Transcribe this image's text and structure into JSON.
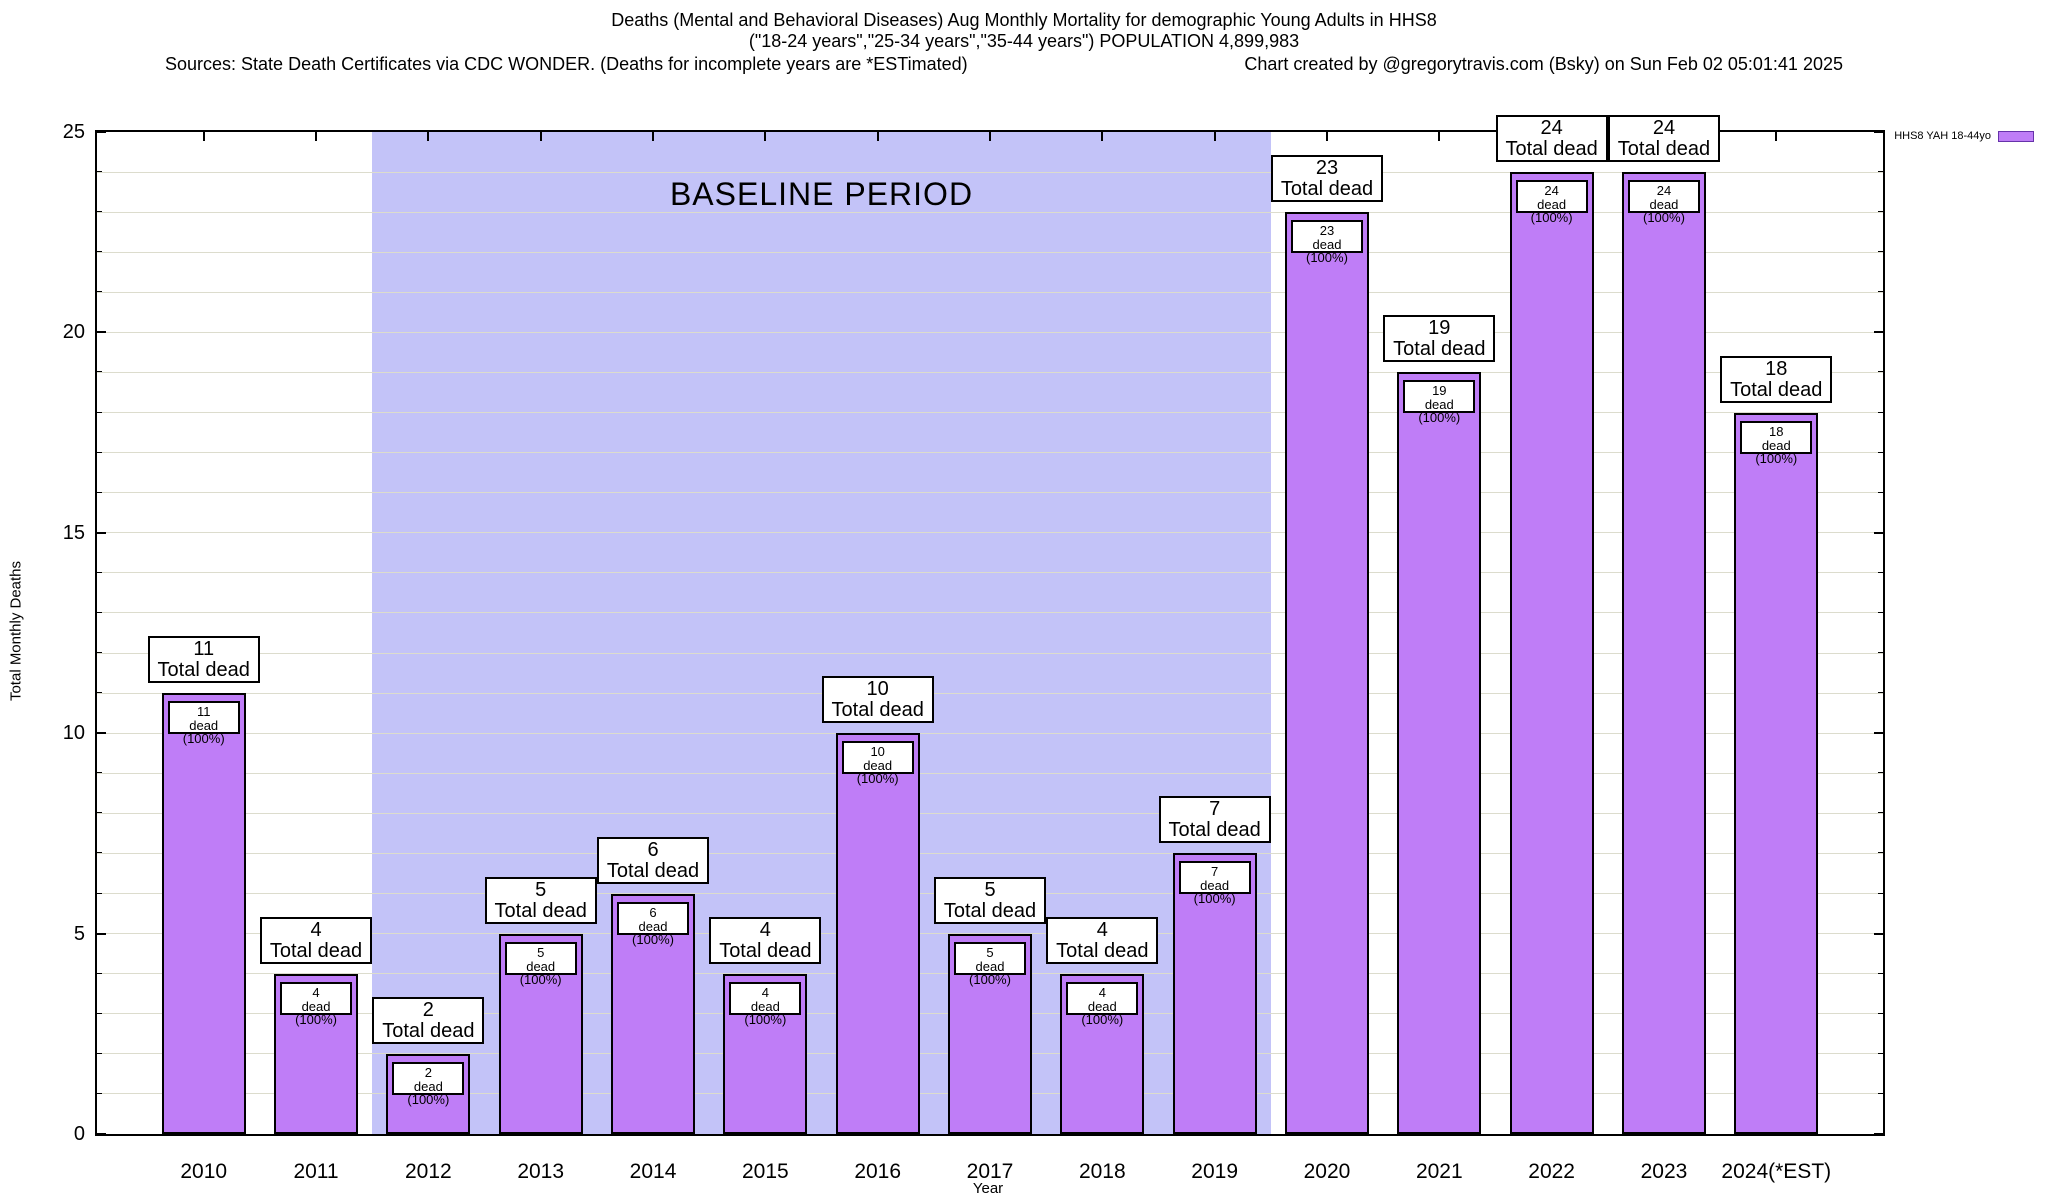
{
  "header": {
    "title_line1": "Deaths (Mental and Behavioral Diseases) Aug Monthly Mortality for demographic Young Adults in HHS8",
    "title_line2": "(\"18-24 years\",\"25-34 years\",\"35-44 years\") POPULATION 4,899,983",
    "sources": "Sources: State Death Certificates via CDC WONDER. (Deaths for incomplete years are *ESTimated)",
    "credit": "Chart created by @gregorytravis.com (Bsky) on Sun Feb 02 05:01:41 2025"
  },
  "legend": {
    "label": "HHS8 YAH 18-44yo"
  },
  "chart_data": {
    "type": "bar",
    "title": "Deaths (Mental and Behavioral Diseases) Aug Monthly Mortality for demographic Young Adults in HHS8",
    "subtitle": "(\"18-24 years\",\"25-34 years\",\"35-44 years\") POPULATION 4,899,983",
    "categories": [
      "2010",
      "2011",
      "2012",
      "2013",
      "2014",
      "2015",
      "2016",
      "2017",
      "2018",
      "2019",
      "2020",
      "2021",
      "2022",
      "2023",
      "2024(*EST)"
    ],
    "x": [
      2010,
      2011,
      2012,
      2013,
      2014,
      2015,
      2016,
      2017,
      2018,
      2019,
      2020,
      2021,
      2022,
      2023,
      2024
    ],
    "series": [
      {
        "name": "HHS8 YAH 18-44yo",
        "values": [
          11,
          4,
          2,
          5,
          6,
          4,
          10,
          5,
          4,
          7,
          23,
          19,
          24,
          24,
          18
        ]
      }
    ],
    "bar_top_label_suffix": "Total dead",
    "bar_inner_label_suffix": "dead (100%)",
    "xlabel": "Year",
    "ylabel": "Total Monthly Deaths",
    "ylim": [
      0,
      25
    ],
    "xlim": [
      2009.05,
      2024.95
    ],
    "ytick_major": 5,
    "ytick_minor": 1,
    "grid": true,
    "legend_position": "top-right",
    "annotations": [
      {
        "text": "BASELINE PERIOD",
        "x_from": 2011.5,
        "x_to": 2019.5
      }
    ],
    "colors": {
      "bar_fill": "#bf7df7",
      "bar_border": "#000000",
      "baseline_fill": "#c3c3f8",
      "grid_line": "#dcdccd",
      "label_box_bg": "#ffffff",
      "label_box_border": "#000000",
      "legend_swatch_border": "#6633aa"
    }
  }
}
